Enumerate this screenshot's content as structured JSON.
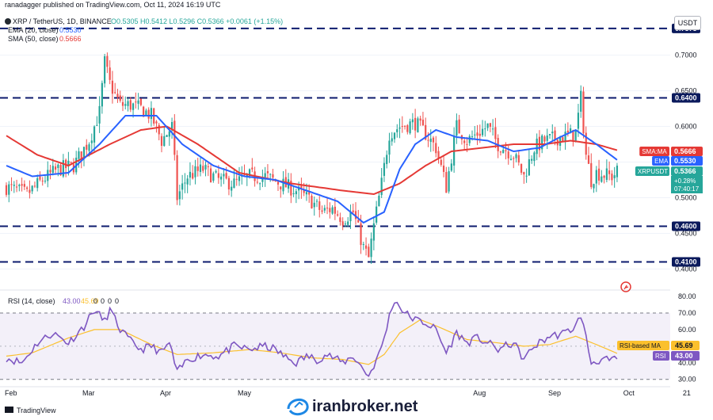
{
  "header": {
    "publisher": "ranadagger published on TradingView.com, Oct 11, 2024 16:19 UTC",
    "symbol": "XRP / TetherUS, 1D, BINANCE",
    "ohlc": "O0.5305 H0.5412 L0.5296 C0.5366 +0.0061 (+1.15%)",
    "ema_legend": "EMA (20, close)",
    "ema_value": "0.5530",
    "sma_legend": "SMA (50, close)",
    "sma_value": "0.5666",
    "currency": "USDT"
  },
  "rsi_header": {
    "label": "RSI (14, close)",
    "values": [
      "43.00",
      "45.69",
      "0",
      "0",
      "0",
      "0"
    ]
  },
  "footer": {
    "brand": "TradingView",
    "watermark": "iranbroker.net"
  },
  "colors": {
    "candle_up": "#26a69a",
    "candle_down": "#ef5350",
    "ema": "#2962ff",
    "sma": "#e53935",
    "rsi_line": "#7e57c2",
    "rsi_ma": "#fbc02d",
    "level_line": "#0d1b6e"
  },
  "chart_data": [
    {
      "type": "candlestick",
      "title": "XRP / TetherUS, 1D, BINANCE",
      "x_tick_labels": [
        "Feb",
        "Mar",
        "Apr",
        "May",
        "Aug",
        "Sep",
        "Oct",
        "21"
      ],
      "y_tick_labels": [
        "0.4000",
        "0.4500",
        "0.5000",
        "0.5500",
        "0.6000",
        "0.6500",
        "0.7000"
      ],
      "ylim": [
        0.375,
        0.755
      ],
      "horizontal_levels": [
        {
          "label": "0.7373",
          "value": 0.7373
        },
        {
          "label": "0.6400",
          "value": 0.64
        },
        {
          "label": "0.4600",
          "value": 0.46
        },
        {
          "label": "0.4100",
          "value": 0.41
        }
      ],
      "price_tags": [
        {
          "label": "SMA:MA",
          "value_text": "0.5666",
          "value": 0.5666,
          "color": "#e53935"
        },
        {
          "label": "EMA",
          "value_text": "0.5530",
          "value": 0.553,
          "color": "#2962ff"
        },
        {
          "label": "XRPUSDT",
          "value_text": "0.5366",
          "sub1": "+0.28%",
          "sub2": "07:40:17",
          "value": 0.5366,
          "color": "#26a69a"
        }
      ],
      "price_anchors": [
        [
          0,
          0.515
        ],
        [
          8,
          0.505
        ],
        [
          14,
          0.525
        ],
        [
          20,
          0.54
        ],
        [
          26,
          0.545
        ],
        [
          32,
          0.58
        ],
        [
          36,
          0.62
        ],
        [
          38,
          0.69
        ],
        [
          40,
          0.66
        ],
        [
          44,
          0.63
        ],
        [
          48,
          0.63
        ],
        [
          52,
          0.625
        ],
        [
          56,
          0.615
        ],
        [
          60,
          0.58
        ],
        [
          64,
          0.6
        ],
        [
          66,
          0.5
        ],
        [
          70,
          0.53
        ],
        [
          76,
          0.54
        ],
        [
          82,
          0.525
        ],
        [
          88,
          0.52
        ],
        [
          94,
          0.53
        ],
        [
          100,
          0.53
        ],
        [
          106,
          0.52
        ],
        [
          112,
          0.51
        ],
        [
          118,
          0.495
        ],
        [
          122,
          0.48
        ],
        [
          126,
          0.485
        ],
        [
          130,
          0.47
        ],
        [
          134,
          0.48
        ],
        [
          138,
          0.43
        ],
        [
          140,
          0.415
        ],
        [
          142,
          0.46
        ],
        [
          145,
          0.52
        ],
        [
          148,
          0.59
        ],
        [
          152,
          0.6
        ],
        [
          158,
          0.605
        ],
        [
          162,
          0.59
        ],
        [
          166,
          0.57
        ],
        [
          170,
          0.515
        ],
        [
          174,
          0.6
        ],
        [
          178,
          0.58
        ],
        [
          182,
          0.59
        ],
        [
          186,
          0.6
        ],
        [
          190,
          0.575
        ],
        [
          196,
          0.56
        ],
        [
          200,
          0.53
        ],
        [
          204,
          0.57
        ],
        [
          208,
          0.58
        ],
        [
          214,
          0.585
        ],
        [
          220,
          0.59
        ],
        [
          222,
          0.64
        ],
        [
          224,
          0.56
        ],
        [
          226,
          0.525
        ],
        [
          228,
          0.535
        ],
        [
          234,
          0.53
        ],
        [
          236,
          0.5366
        ]
      ],
      "ema20_anchors": [
        [
          0,
          0.545
        ],
        [
          10,
          0.53
        ],
        [
          24,
          0.535
        ],
        [
          36,
          0.575
        ],
        [
          46,
          0.615
        ],
        [
          58,
          0.615
        ],
        [
          68,
          0.575
        ],
        [
          80,
          0.545
        ],
        [
          92,
          0.53
        ],
        [
          104,
          0.525
        ],
        [
          116,
          0.51
        ],
        [
          128,
          0.495
        ],
        [
          138,
          0.465
        ],
        [
          146,
          0.48
        ],
        [
          152,
          0.54
        ],
        [
          158,
          0.575
        ],
        [
          166,
          0.595
        ],
        [
          174,
          0.585
        ],
        [
          186,
          0.58
        ],
        [
          196,
          0.565
        ],
        [
          206,
          0.57
        ],
        [
          214,
          0.585
        ],
        [
          220,
          0.595
        ],
        [
          228,
          0.575
        ],
        [
          236,
          0.553
        ]
      ],
      "sma50_anchors": [
        [
          0,
          0.587
        ],
        [
          12,
          0.56
        ],
        [
          24,
          0.545
        ],
        [
          40,
          0.575
        ],
        [
          52,
          0.595
        ],
        [
          62,
          0.6
        ],
        [
          74,
          0.575
        ],
        [
          90,
          0.535
        ],
        [
          110,
          0.52
        ],
        [
          130,
          0.51
        ],
        [
          142,
          0.505
        ],
        [
          152,
          0.52
        ],
        [
          162,
          0.545
        ],
        [
          172,
          0.565
        ],
        [
          184,
          0.57
        ],
        [
          196,
          0.575
        ],
        [
          208,
          0.575
        ],
        [
          218,
          0.58
        ],
        [
          228,
          0.575
        ],
        [
          236,
          0.5666
        ]
      ]
    },
    {
      "type": "line",
      "title": "RSI (14, close)",
      "y_tick_labels": [
        "30.00",
        "40.00",
        "60.00",
        "70.00",
        "80.00"
      ],
      "ylim": [
        27,
        81
      ],
      "band": [
        30,
        70
      ],
      "guides": [
        50
      ],
      "series": [
        {
          "name": "RSI",
          "current": "43.00",
          "anchors": [
            [
              0,
              43
            ],
            [
              6,
              40
            ],
            [
              12,
              52
            ],
            [
              18,
              58
            ],
            [
              24,
              52
            ],
            [
              30,
              62
            ],
            [
              34,
              72
            ],
            [
              38,
              65
            ],
            [
              40,
              72
            ],
            [
              44,
              60
            ],
            [
              48,
              53
            ],
            [
              52,
              48
            ],
            [
              56,
              50
            ],
            [
              60,
              46
            ],
            [
              63,
              52
            ],
            [
              66,
              34
            ],
            [
              70,
              42
            ],
            [
              76,
              45
            ],
            [
              82,
              44
            ],
            [
              88,
              50
            ],
            [
              94,
              48
            ],
            [
              100,
              50
            ],
            [
              104,
              48
            ],
            [
              108,
              43
            ],
            [
              112,
              40
            ],
            [
              116,
              44
            ],
            [
              120,
              42
            ],
            [
              124,
              45
            ],
            [
              130,
              40
            ],
            [
              134,
              44
            ],
            [
              138,
              36
            ],
            [
              140,
              32
            ],
            [
              144,
              45
            ],
            [
              146,
              55
            ],
            [
              148,
              68
            ],
            [
              150,
              78
            ],
            [
              154,
              70
            ],
            [
              158,
              66
            ],
            [
              162,
              64
            ],
            [
              166,
              60
            ],
            [
              170,
              46
            ],
            [
              174,
              58
            ],
            [
              178,
              52
            ],
            [
              182,
              55
            ],
            [
              186,
              52
            ],
            [
              190,
              48
            ],
            [
              196,
              52
            ],
            [
              200,
              42
            ],
            [
              204,
              50
            ],
            [
              210,
              56
            ],
            [
              216,
              58
            ],
            [
              220,
              62
            ],
            [
              222,
              69
            ],
            [
              224,
              55
            ],
            [
              226,
              40
            ],
            [
              230,
              42
            ],
            [
              234,
              41
            ],
            [
              236,
              43
            ]
          ]
        },
        {
          "name": "RSI-based MA",
          "current": "45.69",
          "anchors": [
            [
              0,
              44
            ],
            [
              10,
              46
            ],
            [
              24,
              55
            ],
            [
              34,
              60
            ],
            [
              44,
              60
            ],
            [
              56,
              51
            ],
            [
              66,
              45
            ],
            [
              80,
              46
            ],
            [
              94,
              48
            ],
            [
              106,
              46
            ],
            [
              118,
              43
            ],
            [
              130,
              42
            ],
            [
              140,
              39
            ],
            [
              146,
              45
            ],
            [
              152,
              58
            ],
            [
              160,
              66
            ],
            [
              168,
              61
            ],
            [
              178,
              54
            ],
            [
              190,
              52
            ],
            [
              200,
              50
            ],
            [
              210,
              51
            ],
            [
              220,
              56
            ],
            [
              228,
              51
            ],
            [
              236,
              45.69
            ]
          ]
        }
      ]
    }
  ]
}
